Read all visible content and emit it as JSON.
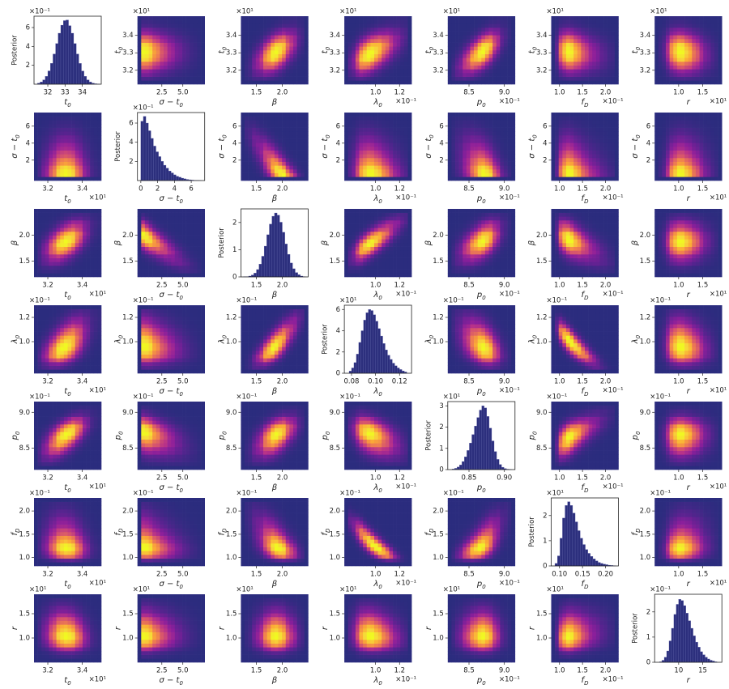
{
  "chart_data": {
    "type": "corner",
    "posterior_label": "Posterior",
    "bar_color": "#2c2f7d",
    "heat_colors": [
      "#2b2c7e",
      "#5a2390",
      "#8b1f9b",
      "#b83289",
      "#d8576b",
      "#ef7f4f",
      "#fbaa36",
      "#f6d73a",
      "#f0f921"
    ],
    "variables": [
      {
        "label": "t",
        "sub": "0",
        "lim": [
          31.2,
          35.1
        ],
        "xticks": [
          {
            "value": 32,
            "label": "3.2"
          },
          {
            "value": 34,
            "label": "3.4"
          }
        ],
        "yticks": [
          {
            "value": 32,
            "label": "3.2"
          },
          {
            "value": 33,
            "label": "3.3"
          },
          {
            "value": 34,
            "label": "3.4"
          }
        ],
        "offset": "×10¹",
        "diag_ticks": [
          32,
          33,
          34
        ],
        "post_lim": [
          0,
          0.72
        ],
        "post_ticks": [
          {
            "value": 0.2,
            "label": "2"
          },
          {
            "value": 0.4,
            "label": "4"
          },
          {
            "value": 0.6,
            "label": "6"
          }
        ],
        "post_offset": "×10⁻¹",
        "bins": [
          31.4,
          31.55,
          31.7,
          31.85,
          32,
          32.15,
          32.3,
          32.45,
          32.6,
          32.75,
          32.9,
          33.05,
          33.2,
          33.35,
          33.5,
          33.65,
          33.8,
          33.95,
          34.1,
          34.25,
          34.4,
          34.55,
          34.7,
          34.85,
          35.0
        ],
        "counts": [
          0.011,
          0.024,
          0.046,
          0.083,
          0.141,
          0.221,
          0.32,
          0.43,
          0.54,
          0.625,
          0.673,
          0.68,
          0.62,
          0.54,
          0.43,
          0.32,
          0.22,
          0.14,
          0.083,
          0.046,
          0.024,
          0.011,
          0.005,
          0.002
        ]
      },
      {
        "label": "σ − t",
        "sub": "0",
        "lim": [
          -0.4,
          7.6
        ],
        "xticks": [
          2.5,
          {
            "value": 5,
            "label": "5.0"
          }
        ],
        "yticks": [
          2,
          4,
          6
        ],
        "diag_ticks": [
          0,
          2,
          4,
          6
        ],
        "post_lim": [
          0,
          0.71
        ],
        "post_ticks": [
          {
            "value": 0.2,
            "label": "2"
          },
          {
            "value": 0.4,
            "label": "4"
          },
          {
            "value": 0.6,
            "label": "6"
          }
        ],
        "post_offset": "×10⁻¹",
        "bins": [
          0,
          0.3,
          0.6,
          0.9,
          1.2,
          1.5,
          1.8,
          2.1,
          2.4,
          2.7,
          3,
          3.3,
          3.6,
          3.9,
          4.2,
          4.5,
          4.8,
          5.1,
          5.4,
          5.7,
          6,
          6.3,
          6.6,
          6.9,
          7.2
        ],
        "counts": [
          0.62,
          0.67,
          0.6,
          0.52,
          0.44,
          0.36,
          0.3,
          0.25,
          0.2,
          0.16,
          0.13,
          0.1,
          0.08,
          0.06,
          0.045,
          0.035,
          0.025,
          0.018,
          0.012,
          0.008,
          0.005,
          0.003,
          0.002,
          0.001
        ]
      },
      {
        "label": "β",
        "lim": [
          1.2,
          2.5
        ],
        "xticks": [
          1.5,
          {
            "value": 2,
            "label": "2.0"
          }
        ],
        "yticks": [
          1.5,
          {
            "value": 2,
            "label": "2.0"
          }
        ],
        "diag_ticks": [
          1.5,
          {
            "value": 2,
            "label": "2.0"
          }
        ],
        "post_lim": [
          0,
          2.5
        ],
        "post_ticks": [
          0,
          1,
          2
        ],
        "bins": [
          1.25,
          1.3,
          1.35,
          1.4,
          1.45,
          1.5,
          1.55,
          1.6,
          1.65,
          1.7,
          1.75,
          1.8,
          1.85,
          1.9,
          1.95,
          2,
          2.05,
          2.1,
          2.15,
          2.2,
          2.25,
          2.3,
          2.35,
          2.4,
          2.45
        ],
        "counts": [
          0.01,
          0.01,
          0.03,
          0.07,
          0.14,
          0.27,
          0.47,
          0.76,
          1.13,
          1.55,
          1.94,
          2.23,
          2.35,
          2.27,
          2.01,
          1.64,
          1.21,
          0.83,
          0.51,
          0.3,
          0.16,
          0.08,
          0.03,
          0.01
        ]
      },
      {
        "label": "λ",
        "sub": "0",
        "lim": [
          0.074,
          0.13
        ],
        "xticks": [
          {
            "value": 0.1,
            "label": "1.0"
          },
          {
            "value": 0.12,
            "label": "1.2"
          }
        ],
        "yticks": [
          {
            "value": 0.1,
            "label": "1.0"
          },
          {
            "value": 0.12,
            "label": "1.2"
          }
        ],
        "offset": "×10⁻¹",
        "diag_ticks": [
          0.08,
          {
            "value": 0.1,
            "label": "0.10"
          },
          0.12
        ],
        "post_lim": [
          0,
          64
        ],
        "post_ticks": [
          0,
          {
            "value": 20,
            "label": "2"
          },
          {
            "value": 40,
            "label": "4"
          },
          {
            "value": 60,
            "label": "6"
          }
        ],
        "post_offset": "×10¹",
        "bins": [
          0.078,
          0.08,
          0.082,
          0.084,
          0.086,
          0.088,
          0.09,
          0.092,
          0.094,
          0.096,
          0.098,
          0.1,
          0.102,
          0.104,
          0.106,
          0.108,
          0.11,
          0.112,
          0.114,
          0.116,
          0.118,
          0.12,
          0.122,
          0.124,
          0.126
        ],
        "counts": [
          2,
          5,
          10,
          18,
          29,
          40,
          50,
          57,
          60,
          59,
          55,
          49,
          42,
          35,
          28,
          22,
          17,
          13,
          9.5,
          7,
          5,
          3.5,
          2.2,
          1.2
        ]
      },
      {
        "label": "p",
        "sub": "0",
        "lim": [
          0.82,
          0.915
        ],
        "xticks": [
          {
            "value": 0.85,
            "label": "8.5"
          },
          {
            "value": 0.9,
            "label": "9.0"
          }
        ],
        "yticks": [
          {
            "value": 0.85,
            "label": "8.5"
          },
          {
            "value": 0.9,
            "label": "9.0"
          }
        ],
        "offset": "×10⁻¹",
        "diag_ticks": [
          0.85,
          {
            "value": 0.9,
            "label": "0.90"
          }
        ],
        "post_lim": [
          0,
          32
        ],
        "post_ticks": [
          0,
          {
            "value": 10,
            "label": "1"
          },
          {
            "value": 20,
            "label": "2"
          },
          {
            "value": 30,
            "label": "3"
          }
        ],
        "post_offset": "×10¹",
        "bins": [
          0.826,
          0.8295,
          0.833,
          0.8365,
          0.84,
          0.8435,
          0.847,
          0.8505,
          0.854,
          0.8575,
          0.861,
          0.8645,
          0.868,
          0.8715,
          0.875,
          0.8785,
          0.882,
          0.8855,
          0.889,
          0.8925,
          0.896,
          0.8995,
          0.903,
          0.9065,
          0.91
        ],
        "counts": [
          0.3,
          0.6,
          1.2,
          2.2,
          3.8,
          6,
          9,
          12.5,
          16.5,
          20.5,
          24.5,
          28,
          30,
          29,
          25,
          19.5,
          13.5,
          8.5,
          4.8,
          2.4,
          1.1,
          0.5,
          0.2,
          0.1
        ]
      },
      {
        "label": "f",
        "sub": "D",
        "lim": [
          0.082,
          0.228
        ],
        "xticks": [
          {
            "value": 0.1,
            "label": "1.0"
          },
          {
            "value": 0.15,
            "label": "1.5"
          },
          {
            "value": 0.2,
            "label": "2.0"
          }
        ],
        "yticks": [
          {
            "value": 0.1,
            "label": "1.0"
          },
          {
            "value": 0.15,
            "label": "1.5"
          },
          {
            "value": 0.2,
            "label": "2.0"
          }
        ],
        "offset": "×10⁻¹",
        "diag_ticks": [
          {
            "value": 0.1,
            "label": "0.10"
          },
          0.15,
          {
            "value": 0.2,
            "label": "0.20"
          }
        ],
        "post_lim": [
          0,
          27
        ],
        "post_ticks": [
          0,
          {
            "value": 10,
            "label": "1"
          },
          {
            "value": 20,
            "label": "2"
          }
        ],
        "post_offset": "×10¹",
        "bins": [
          0.09,
          0.0955,
          0.101,
          0.1065,
          0.112,
          0.1175,
          0.123,
          0.1285,
          0.134,
          0.1395,
          0.145,
          0.1505,
          0.156,
          0.1615,
          0.167,
          0.1725,
          0.178,
          0.1835,
          0.189,
          0.1945,
          0.2,
          0.2055,
          0.211,
          0.2165,
          0.222
        ],
        "counts": [
          1,
          4,
          11,
          19,
          24,
          25.5,
          24,
          21,
          17.5,
          14,
          11,
          8.5,
          6.5,
          5,
          3.8,
          2.8,
          2,
          1.4,
          1,
          0.7,
          0.5,
          0.3,
          0.2,
          0.1
        ]
      },
      {
        "label": "r",
        "lim": [
          5,
          19
        ],
        "xticks": [
          {
            "value": 10,
            "label": "1.0"
          },
          {
            "value": 15,
            "label": "1.5"
          }
        ],
        "yticks": [
          {
            "value": 10,
            "label": "1.0"
          },
          {
            "value": 15,
            "label": "1.5"
          }
        ],
        "offset": "×10¹",
        "diag_ticks": [
          10,
          15
        ],
        "post_lim": [
          0,
          0.27
        ],
        "post_ticks": [
          0,
          {
            "value": 0.1,
            "label": "1"
          },
          {
            "value": 0.2,
            "label": "2"
          }
        ],
        "post_offset": "×10⁻¹",
        "bins": [
          6,
          6.5,
          7,
          7.5,
          8,
          8.5,
          9,
          9.5,
          10,
          10.5,
          11,
          11.5,
          12,
          12.5,
          13,
          13.5,
          14,
          14.5,
          15,
          15.5,
          16,
          16.5,
          17,
          17.5,
          18
        ],
        "counts": [
          0.002,
          0.008,
          0.02,
          0.045,
          0.085,
          0.135,
          0.19,
          0.23,
          0.25,
          0.245,
          0.225,
          0.195,
          0.165,
          0.135,
          0.105,
          0.08,
          0.06,
          0.042,
          0.03,
          0.02,
          0.013,
          0.008,
          0.005,
          0.002
        ]
      }
    ],
    "correlations": [
      [],
      [
        0
      ],
      [
        0.5,
        -0.7
      ],
      [
        0.5,
        -0.1,
        0.75
      ],
      [
        0.6,
        -0.3,
        0.5,
        -0.4
      ],
      [
        -0.1,
        -0.1,
        -0.5,
        -0.85,
        0.6
      ],
      [
        -0.1,
        0,
        0,
        -0.1,
        0,
        0.1
      ]
    ]
  }
}
